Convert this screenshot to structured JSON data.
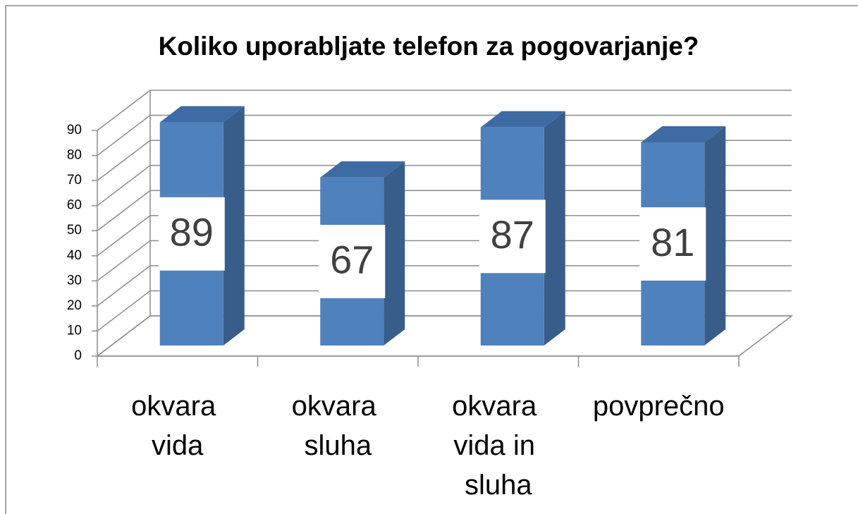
{
  "chart_data": {
    "type": "bar",
    "title": "Koliko uporabljate telefon za pogovarjanje?",
    "categories": [
      "okvara vida",
      "okvara sluha",
      "okvara vida in sluha",
      "povprečno"
    ],
    "values": [
      89,
      67,
      87,
      81
    ],
    "color": "#4f81bd",
    "ylim": [
      0,
      90
    ],
    "yticks": [
      0,
      10,
      20,
      30,
      40,
      50,
      60,
      70,
      80,
      90
    ],
    "grid": true
  }
}
